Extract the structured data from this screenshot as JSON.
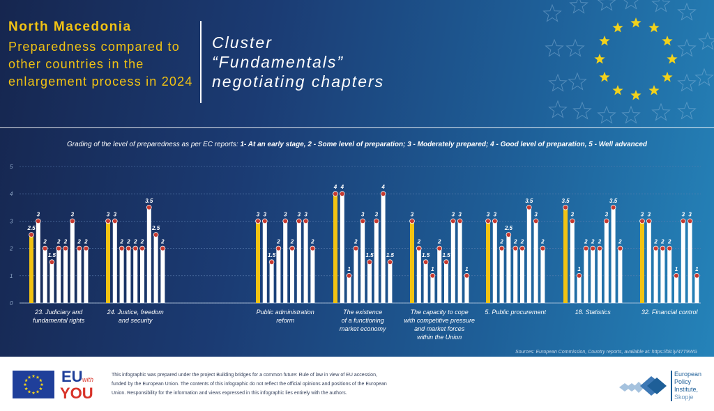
{
  "header": {
    "country": "North Macedonia",
    "subtitle": "Preparedness compared to other countries in the enlargement process in 2024",
    "cluster_line1": "Cluster",
    "cluster_line2": "“Fundamentals”",
    "cluster_line3": "negotiating chapters"
  },
  "grading": {
    "prefix": "Grading of the level of preparedness as per EC reports:",
    "g1": "1- At an early stage,",
    "g2": "2 - Some level of preparation;",
    "g3": "3 - Moderately prepared;",
    "g4": "4 - Good level of preparation,",
    "g5": "5 - Well advanced"
  },
  "source": "Sources: European Commission, Country reports, available at: https://bit.ly/47T9WG",
  "footer": {
    "disclaimer": "This infographic was prepared under the project Building bridges for a common future: Rule of law in view of EU accession, funded by the European Union. The contents of this infographic do not reflect the official opinions and positions of the European Union. Responsibility for the information and views expressed in this infographic lies entirely with the authors.",
    "euwy_eu": "EU",
    "euwy_with": "with",
    "euwy_you": "YOU",
    "epi_name": "European Policy Institute,",
    "epi_city": "Skopje"
  },
  "colors": {
    "highlight": "#f2c313",
    "bar": "#ffffff",
    "gridline": "#5d7fb0",
    "title": "#f2c313"
  },
  "chart_data": {
    "type": "bar",
    "ylim": [
      0,
      5
    ],
    "yticks": [
      "0",
      "1",
      "2",
      "3",
      "4",
      "5"
    ],
    "grid": true,
    "highlighted_country": "North Macedonia",
    "groups": [
      {
        "label": "23. Judiciary and fundamental rights",
        "values": [
          2.5,
          3,
          2,
          1.5,
          2,
          2,
          3,
          2,
          2
        ],
        "value_labels": [
          "2.5",
          "3",
          "2",
          "1.5",
          "2",
          "2",
          "3",
          "2",
          "2"
        ]
      },
      {
        "label": "24. Justice, freedom and security",
        "values": [
          3,
          3,
          2,
          2,
          2,
          2,
          3.5,
          2.5,
          2
        ],
        "value_labels": [
          "3",
          "3",
          "2",
          "2",
          "2",
          "2",
          "3.5",
          "2.5",
          "2"
        ]
      },
      {
        "label": "Public administration reform",
        "values": [
          3,
          3,
          1.5,
          2,
          3,
          2,
          3,
          3,
          2
        ],
        "value_labels": [
          "3",
          "3",
          "1.5",
          "2",
          "3",
          "2",
          "3",
          "3",
          "2"
        ]
      },
      {
        "label": "The existence of a functioning market economy",
        "values": [
          4,
          4,
          1,
          2,
          3,
          1.5,
          3,
          4,
          1.5
        ],
        "value_labels": [
          "4",
          "4",
          "1",
          "2",
          "3",
          "1.5",
          "3",
          "4",
          "1.5"
        ]
      },
      {
        "label": "The capacity to cope with competitive pressure and market forces within the Union",
        "values": [
          3,
          2,
          1.5,
          1,
          2,
          1.5,
          3,
          3,
          1
        ],
        "value_labels": [
          "3",
          "2",
          "1.5",
          "1",
          "2",
          "1.5",
          "3",
          "3",
          "1"
        ]
      },
      {
        "label": "5. Public procurement",
        "values": [
          3,
          3,
          2,
          2.5,
          2,
          2,
          3.5,
          3,
          2
        ],
        "value_labels": [
          "3",
          "3",
          "2",
          "2.5",
          "2",
          "2",
          "3.5",
          "3",
          "2"
        ]
      },
      {
        "label": "18. Statistics",
        "values": [
          3.5,
          3,
          1,
          2,
          2,
          2,
          3,
          3.5,
          2
        ],
        "value_labels": [
          "3.5",
          "3",
          "1",
          "2",
          "2",
          "2",
          "3",
          "3.5",
          "2"
        ]
      },
      {
        "label": "32. Financial control",
        "values": [
          3,
          3,
          2,
          2,
          2,
          1,
          3,
          3,
          1
        ],
        "value_labels": [
          "3",
          "3",
          "2",
          "2",
          "2",
          "1",
          "3",
          "3",
          "1"
        ]
      }
    ]
  }
}
